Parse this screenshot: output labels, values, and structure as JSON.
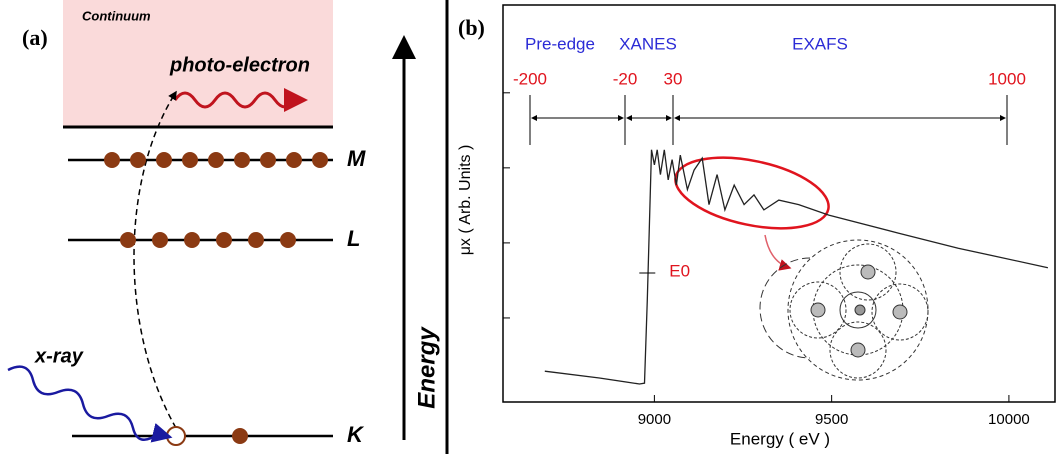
{
  "panel_a": {
    "label": "(a)",
    "continuum": "Continuum",
    "photo_electron": "photo-electron",
    "levels": [
      "M",
      "L",
      "K"
    ],
    "xray": "x-ray",
    "energy": "Energy"
  },
  "panel_b_label": "(b)",
  "chart_data": {
    "type": "line",
    "x_label": "Energy ( eV )",
    "y_label": "μx ( Arb. Units )",
    "regions": [
      "Pre-edge",
      "XANES",
      "EXAFS"
    ],
    "region_color": "#2b2bd6",
    "edge_offsets": [
      -200,
      -20,
      30,
      1000
    ],
    "edge_color": "#e0141e",
    "edge_label": "E0",
    "edge_energy": 8980,
    "x": [
      8691,
      8845,
      8958,
      8972,
      8980,
      8992,
      9000,
      9008,
      9017,
      9028,
      9039,
      9050,
      9062,
      9073,
      9093,
      9112,
      9135,
      9154,
      9177,
      9199,
      9225,
      9253,
      9281,
      9309,
      9351,
      9407,
      9492,
      9688,
      9857,
      10110
    ],
    "values": [
      0.29,
      0.2,
      0.12,
      0.13,
      1.24,
      3.24,
      3.04,
      3.24,
      2.91,
      3.24,
      2.84,
      3.11,
      2.77,
      3.17,
      2.71,
      2.97,
      3.13,
      2.51,
      2.91,
      2.44,
      2.77,
      2.51,
      2.64,
      2.44,
      2.57,
      2.51,
      2.37,
      2.13,
      1.93,
      1.67
    ],
    "color": "#222222",
    "xlim": [
      8573,
      10130
    ],
    "xticks": [
      9000,
      9500,
      10000
    ],
    "ylim": [
      -0.12,
      5.17
    ],
    "yticks": [
      1,
      2,
      3,
      4
    ]
  }
}
